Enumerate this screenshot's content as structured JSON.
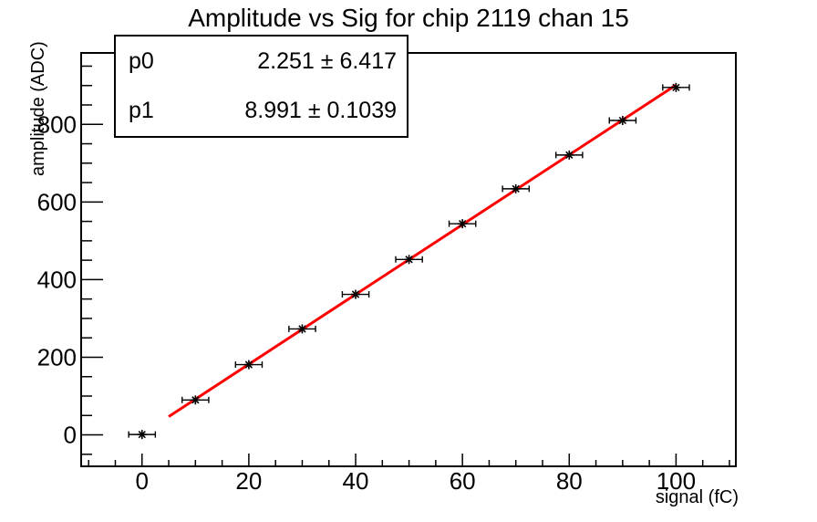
{
  "title": "Amplitude vs Sig for chip 2119 chan 15",
  "stats_box": {
    "rows": [
      {
        "label": "p0",
        "value": "2.251 ± 6.417"
      },
      {
        "label": "p1",
        "value": "8.991 ± 0.1039"
      }
    ]
  },
  "chart_data": {
    "type": "scatter",
    "title": "Amplitude vs Sig for chip 2119 chan 15",
    "xlabel": "signal (fC)",
    "ylabel": "amplitude (ADC)",
    "xlim": [
      -11.4,
      111.2
    ],
    "ylim": [
      -81,
      984
    ],
    "x_major_ticks": [
      0,
      20,
      40,
      60,
      80,
      100
    ],
    "x_minor_step": 5,
    "y_major_ticks": [
      0,
      200,
      400,
      600,
      800
    ],
    "y_minor_step": 50,
    "grid": false,
    "legend": false,
    "series": [
      {
        "name": "data-points",
        "type": "scatter",
        "marker": "asterisk",
        "color": "#000000",
        "x": [
          0,
          10,
          20,
          30,
          40,
          50,
          60,
          70,
          80,
          90,
          100
        ],
        "y": [
          1,
          90,
          181,
          273,
          362,
          452,
          544,
          634,
          721,
          810,
          895
        ],
        "xerr": 1.4
      },
      {
        "name": "linear-fit",
        "type": "line",
        "color": "#ff0000",
        "p0": 2.251,
        "p0_err": 6.417,
        "p1": 8.991,
        "p1_err": 0.1039,
        "x_range": [
          5,
          100
        ]
      }
    ]
  },
  "colors": {
    "fit_line": "#ff0000",
    "marker": "#000000",
    "frame": "#000000",
    "background": "#ffffff"
  }
}
